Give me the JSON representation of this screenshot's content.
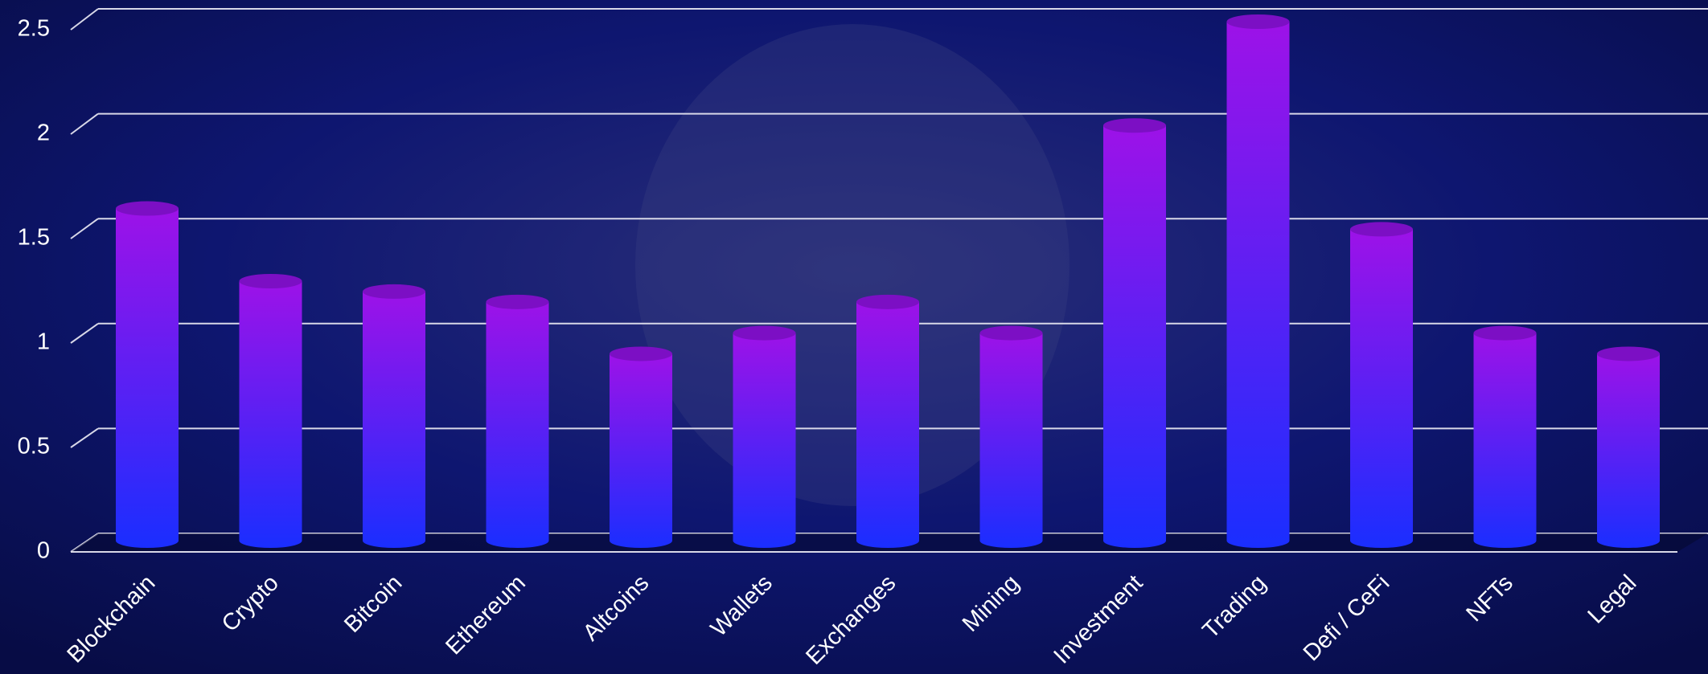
{
  "chart_data": {
    "type": "bar",
    "categories": [
      "Blockchain",
      "Crypto",
      "Bitcoin",
      "Ethereum",
      "Altcoins",
      "Wallets",
      "Exchanges",
      "Mining",
      "Investment",
      "Trading",
      "Defi / CeFi",
      "NFTs",
      "Legal"
    ],
    "values": [
      1.6,
      1.25,
      1.2,
      1.15,
      0.9,
      1.0,
      1.15,
      1.0,
      2.0,
      2.5,
      1.5,
      1.0,
      0.9
    ],
    "colors": [
      "#9d12e8",
      "#1a2eff"
    ],
    "ylim": [
      0,
      2.5
    ],
    "yticks": [
      0,
      0.5,
      1,
      1.5,
      2,
      2.5
    ],
    "grid": true
  }
}
